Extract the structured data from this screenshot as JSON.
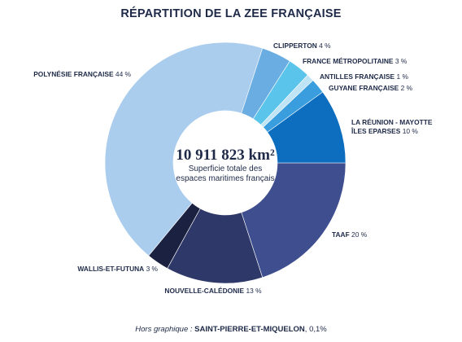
{
  "chart_data": {
    "type": "pie",
    "title": "RÉPARTITION DE LA ZEE FRANÇAISE",
    "unit": "%",
    "center_value": "10 911 823 km²",
    "center_text": [
      "Superficie totale des",
      "espaces maritimes français"
    ],
    "slices": [
      {
        "name": "TAAF",
        "value": 20,
        "value_label": "20 %",
        "color": "#3e4e8e"
      },
      {
        "name": "NOUVELLE-CALÉDONIE",
        "value": 13,
        "value_label": "13 %",
        "color": "#2f3969"
      },
      {
        "name": "WALLIS-ET-FUTUNA",
        "value": 3,
        "value_label": "3 %",
        "color": "#1b2140"
      },
      {
        "name": "POLYNÉSIE FRANÇAISE",
        "value": 44,
        "value_label": "44 %",
        "color": "#aacdee"
      },
      {
        "name": "CLIPPERTON",
        "value": 4,
        "value_label": "4 %",
        "color": "#6aade3"
      },
      {
        "name": "FRANCE MÉTROPOLITAINE",
        "value": 3,
        "value_label": "3 %",
        "color": "#5bc4ea"
      },
      {
        "name": "ANTILLES FRANÇAISE",
        "value": 1,
        "value_label": "1 %",
        "color": "#bfe4f5"
      },
      {
        "name": "GUYANE FRANÇAISE",
        "value": 2,
        "value_label": "2 %",
        "color": "#3a9ede"
      },
      {
        "name": "LA RÉUNION - MAYOTTE",
        "name_line2": "ÎLES EPARSES",
        "value": 10,
        "value_label": "10 %",
        "color": "#0d6ebf"
      }
    ],
    "footnote": {
      "prefix": "Hors graphique : ",
      "name": "SAINT-PIERRE-ET-MIQUELON",
      "value": ", 0,1%"
    }
  }
}
